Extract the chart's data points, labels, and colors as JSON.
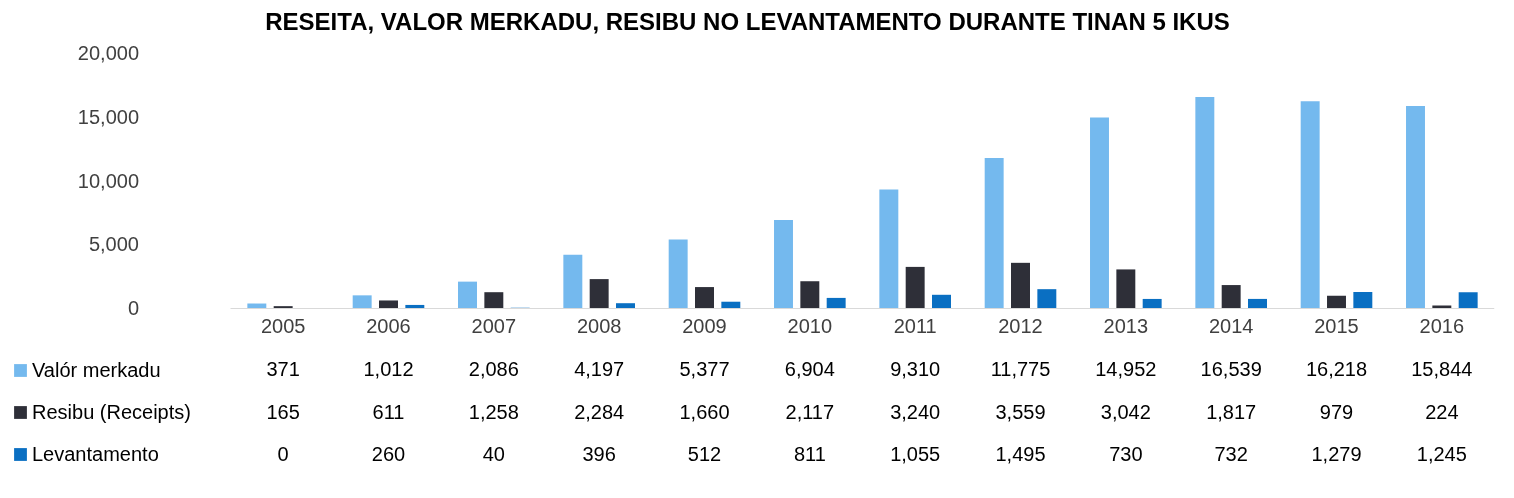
{
  "chart_data": {
    "type": "bar",
    "title": "RESEITA, VALOR MERKADU, RESIBU NO LEVANTAMENTO DURANTE TINAN 5 IKUS",
    "categories": [
      "2005",
      "2006",
      "2007",
      "2008",
      "2009",
      "2010",
      "2011",
      "2012",
      "2013",
      "2014",
      "2015",
      "2016"
    ],
    "series": [
      {
        "name": "Valór merkadu",
        "color": "#74b9ee",
        "values": [
          371,
          1012,
          2086,
          4197,
          5377,
          6904,
          9310,
          11775,
          14952,
          16539,
          16218,
          15844
        ],
        "value_labels": [
          "371",
          "1,012",
          "2,086",
          "4,197",
          "5,377",
          "6,904",
          "9,310",
          "11,775",
          "14,952",
          "16,539",
          "16,218",
          "15,844"
        ]
      },
      {
        "name": "Resibu (Receipts)",
        "color": "#2e2f38",
        "values": [
          165,
          611,
          1258,
          2284,
          1660,
          2117,
          3240,
          3559,
          3042,
          1817,
          979,
          224
        ],
        "value_labels": [
          "165",
          "611",
          "1,258",
          "2,284",
          "1,660",
          "2,117",
          "3,240",
          "3,559",
          "3,042",
          "1,817",
          "979",
          "224"
        ]
      },
      {
        "name": "Levantamento",
        "color": "#0a6fc2",
        "values": [
          0,
          260,
          40,
          396,
          512,
          811,
          1055,
          1495,
          730,
          732,
          1279,
          1245
        ],
        "value_labels": [
          "0",
          "260",
          "40",
          "396",
          "512",
          "811",
          "1,055",
          "1,495",
          "730",
          "732",
          "1,279",
          "1,245"
        ]
      }
    ],
    "ylim": [
      0,
      20000
    ],
    "yticks": [
      0,
      {
        "value": 5000,
        "label": "5,000"
      },
      {
        "value": 10000,
        "label": "10,000"
      },
      {
        "value": 15000,
        "label": "15,000"
      },
      {
        "value": 20000,
        "label": "20,000"
      }
    ],
    "legend": "bottom"
  }
}
